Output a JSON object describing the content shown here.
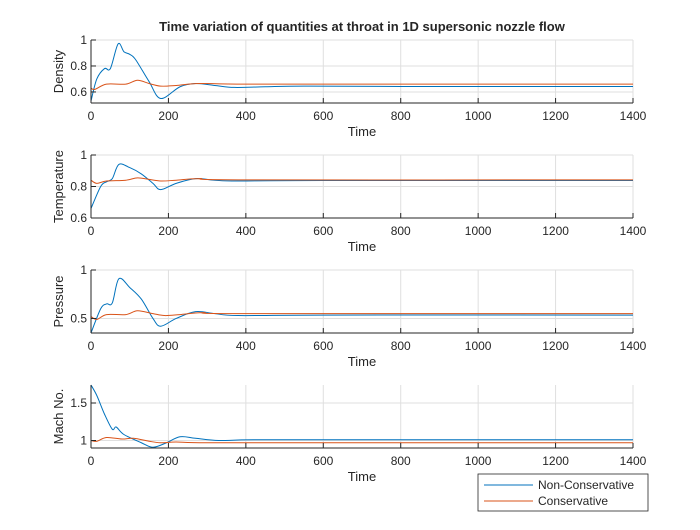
{
  "chart_data": {
    "title": "Time variation of quantities at throat in 1D supersonic nozzle flow",
    "type": "line",
    "legend": {
      "placement": "bottom-right",
      "entries": [
        "Non-Conservative",
        "Conservative"
      ]
    },
    "colors": {
      "Non-Conservative": "#0072BD",
      "Conservative": "#D95319"
    },
    "grid": true,
    "subplots": [
      {
        "xlabel": "Time",
        "ylabel": "Density",
        "xlim": [
          0,
          1400
        ],
        "ylim": [
          0.515,
          1
        ],
        "xticks": [
          "0",
          "200",
          "400",
          "600",
          "800",
          "1000",
          "1200",
          "1400"
        ],
        "yticks": [
          0.6,
          0.8,
          1
        ],
        "ytick_labels": [
          "0.6",
          "0.8",
          "1"
        ],
        "series": [
          {
            "name": "Non-Conservative",
            "x": [
              0,
              15,
              35,
              50,
              70,
              85,
              100,
              115,
              150,
              180,
              230,
              270,
              320,
              370,
              450,
              550,
              800,
              1400
            ],
            "y": [
              0.53,
              0.7,
              0.78,
              0.78,
              0.97,
              0.91,
              0.89,
              0.85,
              0.68,
              0.55,
              0.64,
              0.665,
              0.65,
              0.635,
              0.64,
              0.645,
              0.642,
              0.642
            ]
          },
          {
            "name": "Conservative",
            "x": [
              0,
              10,
              40,
              90,
              120,
              150,
              180,
              220,
              280,
              400,
              800,
              1400
            ],
            "y": [
              0.63,
              0.62,
              0.66,
              0.66,
              0.69,
              0.665,
              0.645,
              0.65,
              0.665,
              0.66,
              0.66,
              0.66
            ]
          }
        ]
      },
      {
        "xlabel": "Time",
        "ylabel": "Temperature",
        "xlim": [
          0,
          1400
        ],
        "ylim": [
          0.6,
          1
        ],
        "xticks": [
          "0",
          "200",
          "400",
          "600",
          "800",
          "1000",
          "1200",
          "1400"
        ],
        "yticks": [
          0.6,
          0.8,
          1
        ],
        "ytick_labels": [
          "0.6",
          "0.8",
          "1"
        ],
        "series": [
          {
            "name": "Non-Conservative",
            "x": [
              0,
              25,
              40,
              55,
              72,
              100,
              130,
              160,
              180,
              220,
              270,
              320,
              380,
              600,
              1400
            ],
            "y": [
              0.66,
              0.8,
              0.83,
              0.85,
              0.94,
              0.92,
              0.88,
              0.82,
              0.78,
              0.82,
              0.85,
              0.84,
              0.835,
              0.838,
              0.838
            ]
          },
          {
            "name": "Conservative",
            "x": [
              0,
              15,
              40,
              90,
              120,
              150,
              180,
              220,
              280,
              400,
              1400
            ],
            "y": [
              0.84,
              0.82,
              0.835,
              0.84,
              0.855,
              0.845,
              0.835,
              0.84,
              0.85,
              0.842,
              0.842
            ]
          }
        ]
      },
      {
        "xlabel": "Time",
        "ylabel": "Pressure",
        "xlim": [
          0,
          1400
        ],
        "ylim": [
          0.35,
          1
        ],
        "xticks": [
          "0",
          "200",
          "400",
          "600",
          "800",
          "1000",
          "1200",
          "1400"
        ],
        "yticks": [
          0.5,
          1
        ],
        "ytick_labels": [
          "0.5",
          "1"
        ],
        "series": [
          {
            "name": "Non-Conservative",
            "x": [
              0,
              25,
              40,
              55,
              72,
              100,
              130,
              160,
              180,
              220,
              270,
              320,
              380,
              600,
              1400
            ],
            "y": [
              0.35,
              0.6,
              0.65,
              0.66,
              0.91,
              0.82,
              0.7,
              0.5,
              0.42,
              0.5,
              0.57,
              0.55,
              0.53,
              0.535,
              0.535
            ]
          },
          {
            "name": "Conservative",
            "x": [
              0,
              15,
              40,
              90,
              120,
              160,
              190,
              230,
              290,
              400,
              1400
            ],
            "y": [
              0.52,
              0.49,
              0.54,
              0.54,
              0.58,
              0.55,
              0.53,
              0.54,
              0.56,
              0.55,
              0.55
            ]
          }
        ]
      },
      {
        "xlabel": "Time",
        "ylabel": "Mach No.",
        "xlim": [
          0,
          1400
        ],
        "ylim": [
          0.9,
          1.74
        ],
        "xticks": [
          "0",
          "200",
          "400",
          "600",
          "800",
          "1000",
          "1200",
          "1400"
        ],
        "yticks": [
          1,
          1.5
        ],
        "ytick_labels": [
          "1",
          "1.5"
        ],
        "series": [
          {
            "name": "Non-Conservative",
            "x": [
              0,
              15,
              35,
              55,
              65,
              85,
              130,
              160,
              195,
              230,
              270,
              330,
              420,
              700,
              1400
            ],
            "y": [
              1.74,
              1.6,
              1.35,
              1.15,
              1.18,
              1.08,
              0.97,
              0.91,
              0.97,
              1.05,
              1.03,
              1.0,
              1.01,
              1.01,
              1.01
            ]
          },
          {
            "name": "Conservative",
            "x": [
              0,
              15,
              40,
              80,
              110,
              150,
              180,
              220,
              300,
              600,
              1400
            ],
            "y": [
              1.0,
              0.99,
              1.04,
              1.02,
              1.03,
              0.99,
              0.97,
              0.98,
              0.97,
              0.97,
              0.97
            ]
          }
        ]
      }
    ]
  }
}
